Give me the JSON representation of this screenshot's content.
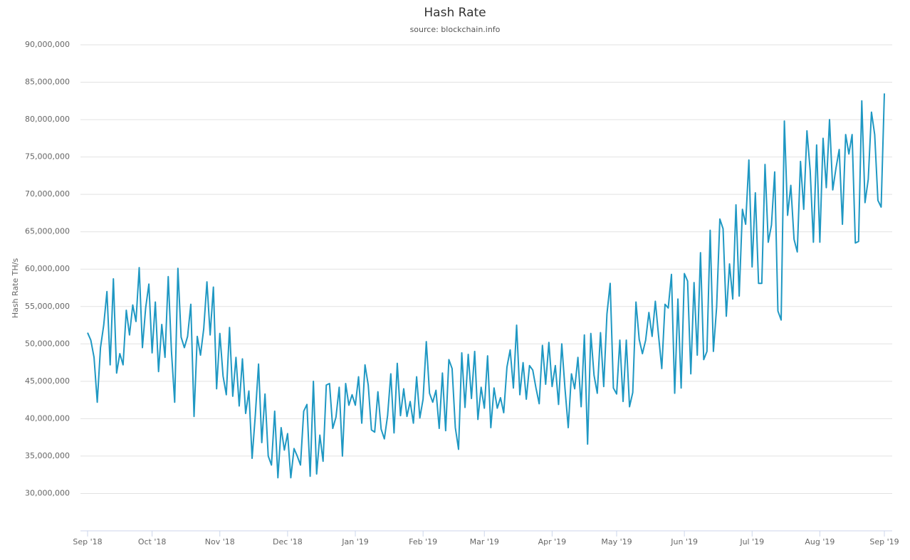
{
  "chart_data": {
    "type": "line",
    "title": "Hash Rate",
    "subtitle": "source: blockchain.info",
    "y_label": "Hash Rate TH/s",
    "color": "#1f98c3",
    "grid": true,
    "ylim": [
      25000000,
      90000000
    ],
    "yticks": [
      {
        "value": 30000000,
        "label": "30,000,000"
      },
      {
        "value": 35000000,
        "label": "35,000,000"
      },
      {
        "value": 40000000,
        "label": "40,000,000"
      },
      {
        "value": 45000000,
        "label": "45,000,000"
      },
      {
        "value": 50000000,
        "label": "50,000,000"
      },
      {
        "value": 55000000,
        "label": "55,000,000"
      },
      {
        "value": 60000000,
        "label": "60,000,000"
      },
      {
        "value": 65000000,
        "label": "65,000,000"
      },
      {
        "value": 70000000,
        "label": "70,000,000"
      },
      {
        "value": 75000000,
        "label": "75,000,000"
      },
      {
        "value": 80000000,
        "label": "80,000,000"
      },
      {
        "value": 85000000,
        "label": "85,000,000"
      },
      {
        "value": 90000000,
        "label": "90,000,000"
      }
    ],
    "categories": [
      "Sep '18",
      null,
      null,
      null,
      null,
      null,
      null,
      null,
      null,
      null,
      null,
      null,
      null,
      null,
      null,
      null,
      null,
      null,
      null,
      null,
      "Oct '18",
      null,
      null,
      null,
      null,
      null,
      null,
      null,
      null,
      null,
      null,
      null,
      null,
      null,
      null,
      null,
      null,
      null,
      null,
      null,
      null,
      "Nov '18",
      null,
      null,
      null,
      null,
      null,
      null,
      null,
      null,
      null,
      null,
      null,
      null,
      null,
      null,
      null,
      null,
      null,
      null,
      null,
      null,
      "Dec '18",
      null,
      null,
      null,
      null,
      null,
      null,
      null,
      null,
      null,
      null,
      null,
      null,
      null,
      null,
      null,
      null,
      null,
      null,
      null,
      null,
      "Jan '19",
      null,
      null,
      null,
      null,
      null,
      null,
      null,
      null,
      null,
      null,
      null,
      null,
      null,
      null,
      null,
      null,
      null,
      null,
      null,
      null,
      "Feb '19",
      null,
      null,
      null,
      null,
      null,
      null,
      null,
      null,
      null,
      null,
      null,
      null,
      null,
      null,
      null,
      null,
      null,
      null,
      "Mar '19",
      null,
      null,
      null,
      null,
      null,
      null,
      null,
      null,
      null,
      null,
      null,
      null,
      null,
      null,
      null,
      null,
      null,
      null,
      null,
      null,
      "Apr '19",
      null,
      null,
      null,
      null,
      null,
      null,
      null,
      null,
      null,
      null,
      null,
      null,
      null,
      null,
      null,
      null,
      null,
      null,
      null,
      "May '19",
      null,
      null,
      null,
      null,
      null,
      null,
      null,
      null,
      null,
      null,
      null,
      null,
      null,
      null,
      null,
      null,
      null,
      null,
      null,
      null,
      "Jun '19",
      null,
      null,
      null,
      null,
      null,
      null,
      null,
      null,
      null,
      null,
      null,
      null,
      null,
      null,
      null,
      null,
      null,
      null,
      null,
      null,
      "Jul '19",
      null,
      null,
      null,
      null,
      null,
      null,
      null,
      null,
      null,
      null,
      null,
      null,
      null,
      null,
      null,
      null,
      null,
      null,
      null,
      null,
      "Aug '19",
      null,
      null,
      null,
      null,
      null,
      null,
      null,
      null,
      null,
      null,
      null,
      null,
      null,
      null,
      null,
      null,
      null,
      null,
      null,
      "Sep '19"
    ],
    "values": [
      51500000,
      50500000,
      48200000,
      42200000,
      49500000,
      52500000,
      57000000,
      47200000,
      58700000,
      46100000,
      48700000,
      47200000,
      54500000,
      51200000,
      55200000,
      53000000,
      60200000,
      49500000,
      54800000,
      58000000,
      48800000,
      55600000,
      46300000,
      52600000,
      48200000,
      59000000,
      49000000,
      42200000,
      60100000,
      50900000,
      49500000,
      51000000,
      55300000,
      40300000,
      51000000,
      48500000,
      52000000,
      58300000,
      51200000,
      57600000,
      44000000,
      51400000,
      45700000,
      43200000,
      52200000,
      43000000,
      48200000,
      41700000,
      48000000,
      40700000,
      43700000,
      34700000,
      40500000,
      47300000,
      36800000,
      43300000,
      35000000,
      33800000,
      41000000,
      32100000,
      38800000,
      35800000,
      38000000,
      32100000,
      36000000,
      35000000,
      33800000,
      41000000,
      41900000,
      32300000,
      45000000,
      32600000,
      37800000,
      34300000,
      44500000,
      44700000,
      38700000,
      40200000,
      44200000,
      35000000,
      44700000,
      41800000,
      43200000,
      41800000,
      45600000,
      39400000,
      47200000,
      44500000,
      38500000,
      38200000,
      43600000,
      38600000,
      37300000,
      40400000,
      46000000,
      38100000,
      47400000,
      40400000,
      44000000,
      40300000,
      42300000,
      39400000,
      45600000,
      40100000,
      42600000,
      50300000,
      43400000,
      42200000,
      43800000,
      38700000,
      46100000,
      38400000,
      47900000,
      46700000,
      38800000,
      35900000,
      48800000,
      41500000,
      48600000,
      42700000,
      49000000,
      39900000,
      44200000,
      41400000,
      48400000,
      38800000,
      44100000,
      41400000,
      42800000,
      40800000,
      46900000,
      49200000,
      44100000,
      52500000,
      43200000,
      47500000,
      42600000,
      47100000,
      46500000,
      44100000,
      42000000,
      49800000,
      44600000,
      50200000,
      44300000,
      47100000,
      41900000,
      50000000,
      44000000,
      38800000,
      46000000,
      44000000,
      48200000,
      41600000,
      51200000,
      36600000,
      51400000,
      45800000,
      43400000,
      51500000,
      44300000,
      54000000,
      58100000,
      44100000,
      43300000,
      50500000,
      42300000,
      50500000,
      41600000,
      43500000,
      55600000,
      50600000,
      48700000,
      50500000,
      54200000,
      51000000,
      55700000,
      51100000,
      46700000,
      55300000,
      54800000,
      59300000,
      43400000,
      56000000,
      44100000,
      59400000,
      58400000,
      46000000,
      58200000,
      48500000,
      62200000,
      47900000,
      49000000,
      65200000,
      49000000,
      54900000,
      66700000,
      65400000,
      53700000,
      60700000,
      56000000,
      68600000,
      56400000,
      68000000,
      66000000,
      74600000,
      60300000,
      70200000,
      58100000,
      58100000,
      74000000,
      63600000,
      65900000,
      73000000,
      54400000,
      53200000,
      79800000,
      67200000,
      71200000,
      64000000,
      62300000,
      74400000,
      68000000,
      78500000,
      73200000,
      63600000,
      76600000,
      63600000,
      77500000,
      70900000,
      80000000,
      70600000,
      73500000,
      76000000,
      66000000,
      78000000,
      75400000,
      78000000,
      63500000,
      63700000,
      82500000,
      68900000,
      72000000,
      81000000,
      78000000,
      69200000,
      68300000,
      83500000
    ]
  }
}
